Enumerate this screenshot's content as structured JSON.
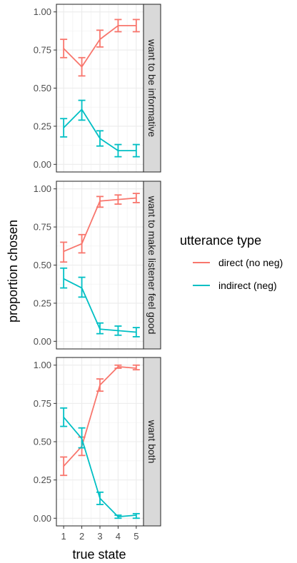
{
  "chart_data": {
    "type": "line",
    "xlabel": "true state",
    "ylabel": "proportion chosen",
    "x": [
      1,
      2,
      3,
      4,
      5
    ],
    "xlim": [
      0.6,
      5.4
    ],
    "ylim": [
      -0.05,
      1.05
    ],
    "yticks": [
      0.0,
      0.25,
      0.5,
      0.75,
      1.0
    ],
    "ytick_labels": [
      "0.00",
      "0.25",
      "0.50",
      "0.75",
      "1.00"
    ],
    "grid": true,
    "error_bars": true,
    "legend": {
      "title": "utterance type",
      "placement": "right",
      "entries": [
        "direct (no neg)",
        "indirect (neg)"
      ]
    },
    "colors": {
      "direct (no neg)": "#F8766D",
      "indirect (neg)": "#00BFC4"
    },
    "facets": [
      {
        "label": "want to be informative",
        "series": [
          {
            "name": "direct (no neg)",
            "values": [
              0.76,
              0.64,
              0.82,
              0.91,
              0.91
            ],
            "lower": [
              0.7,
              0.58,
              0.77,
              0.87,
              0.87
            ],
            "upper": [
              0.82,
              0.7,
              0.88,
              0.95,
              0.95
            ]
          },
          {
            "name": "indirect (neg)",
            "values": [
              0.24,
              0.36,
              0.17,
              0.09,
              0.09
            ],
            "lower": [
              0.18,
              0.29,
              0.12,
              0.05,
              0.05
            ],
            "upper": [
              0.3,
              0.42,
              0.22,
              0.13,
              0.13
            ]
          }
        ]
      },
      {
        "label": "want to make listener feel good",
        "series": [
          {
            "name": "direct (no neg)",
            "values": [
              0.59,
              0.64,
              0.92,
              0.93,
              0.94
            ],
            "lower": [
              0.52,
              0.58,
              0.88,
              0.9,
              0.91
            ],
            "upper": [
              0.65,
              0.7,
              0.95,
              0.96,
              0.97
            ]
          },
          {
            "name": "indirect (neg)",
            "values": [
              0.41,
              0.35,
              0.08,
              0.07,
              0.06
            ],
            "lower": [
              0.35,
              0.29,
              0.05,
              0.04,
              0.03
            ],
            "upper": [
              0.48,
              0.42,
              0.12,
              0.1,
              0.09
            ]
          }
        ]
      },
      {
        "label": "want both",
        "series": [
          {
            "name": "direct (no neg)",
            "values": [
              0.34,
              0.47,
              0.87,
              0.99,
              0.98
            ],
            "lower": [
              0.28,
              0.41,
              0.83,
              0.98,
              0.97
            ],
            "upper": [
              0.4,
              0.53,
              0.91,
              1.0,
              1.0
            ]
          },
          {
            "name": "indirect (neg)",
            "values": [
              0.66,
              0.52,
              0.13,
              0.01,
              0.02
            ],
            "lower": [
              0.6,
              0.46,
              0.09,
              0.0,
              0.0
            ],
            "upper": [
              0.72,
              0.59,
              0.17,
              0.02,
              0.03
            ]
          }
        ]
      }
    ]
  }
}
